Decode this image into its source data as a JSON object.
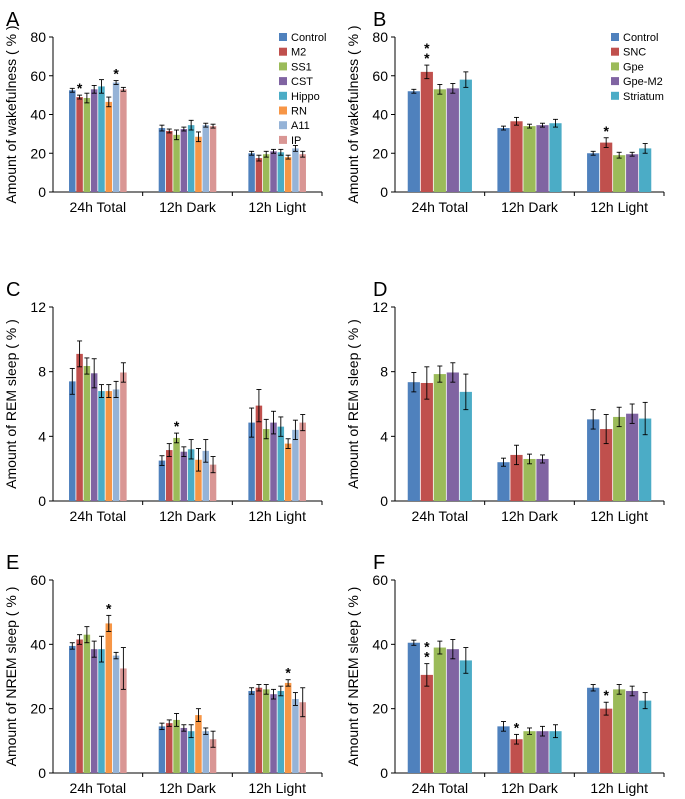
{
  "colors": {
    "Control": "#4f81bd",
    "M2": "#c0504d",
    "SS1": "#9bbb59",
    "CST": "#8064a2",
    "Hippo": "#4bacc6",
    "RN": "#f79646",
    "A11": "#95b3d7",
    "IP": "#d99694",
    "SNC": "#c0504d",
    "Gpe": "#9bbb59",
    "Gpe-M2": "#8064a2",
    "Striatum": "#4bacc6"
  },
  "chart_data": [
    {
      "panel": "A",
      "type": "bar",
      "ylabel": "Amount of wakefulness ( % )",
      "ylim": [
        0,
        80
      ],
      "yticks": [
        0,
        20,
        40,
        60,
        80
      ],
      "categories": [
        "24h Total",
        "12h Dark",
        "12h Light"
      ],
      "legend_position": "top-right",
      "series": [
        {
          "name": "Control",
          "values": [
            52.5,
            33,
            20
          ],
          "errors": [
            1.0,
            1.5,
            1.0
          ],
          "stars": [
            "",
            "",
            ""
          ]
        },
        {
          "name": "M2",
          "values": [
            49,
            31.5,
            17.5
          ],
          "errors": [
            1.0,
            1.0,
            1.5
          ],
          "stars": [
            "*",
            "",
            ""
          ]
        },
        {
          "name": "SS1",
          "values": [
            48.5,
            29.5,
            19.5
          ],
          "errors": [
            2.5,
            2.5,
            1.5
          ],
          "stars": [
            "",
            "",
            ""
          ]
        },
        {
          "name": "CST",
          "values": [
            53,
            32.5,
            21
          ],
          "errors": [
            2.0,
            1.0,
            1.0
          ],
          "stars": [
            "",
            "",
            ""
          ]
        },
        {
          "name": "Hippo",
          "values": [
            54.5,
            34.5,
            20.5
          ],
          "errors": [
            3.5,
            2.5,
            1.5
          ],
          "stars": [
            "",
            "",
            ""
          ]
        },
        {
          "name": "RN",
          "values": [
            46.5,
            28.5,
            18
          ],
          "errors": [
            2.5,
            2.5,
            1.0
          ],
          "stars": [
            "",
            "",
            ""
          ]
        },
        {
          "name": "A11",
          "values": [
            56.5,
            34.5,
            22.5
          ],
          "errors": [
            1.0,
            1.0,
            1.5
          ],
          "stars": [
            "*",
            "",
            ""
          ]
        },
        {
          "name": "IP",
          "values": [
            53,
            34,
            19.5
          ],
          "errors": [
            1.0,
            1.0,
            1.5
          ],
          "stars": [
            "",
            "",
            ""
          ]
        }
      ]
    },
    {
      "panel": "B",
      "type": "bar",
      "ylabel": "Amount of wakefulness ( % )",
      "ylim": [
        0,
        80
      ],
      "yticks": [
        0,
        20,
        40,
        60,
        80
      ],
      "categories": [
        "24h Total",
        "12h Dark",
        "12h Light"
      ],
      "legend_position": "top-right",
      "series": [
        {
          "name": "Control",
          "values": [
            52,
            33,
            20
          ],
          "errors": [
            1.0,
            1.0,
            1.0
          ],
          "stars": [
            "",
            "",
            ""
          ]
        },
        {
          "name": "SNC",
          "values": [
            62,
            36.5,
            25.5
          ],
          "errors": [
            3.5,
            2.0,
            2.5
          ],
          "stars": [
            "**",
            "",
            "*"
          ]
        },
        {
          "name": "Gpe",
          "values": [
            53,
            34,
            19
          ],
          "errors": [
            2.5,
            1.0,
            1.5
          ],
          "stars": [
            "",
            "",
            ""
          ]
        },
        {
          "name": "Gpe-M2",
          "values": [
            53.5,
            34.5,
            19.5
          ],
          "errors": [
            2.5,
            1.0,
            1.0
          ],
          "stars": [
            "",
            "",
            ""
          ]
        },
        {
          "name": "Striatum",
          "values": [
            58,
            35.5,
            22.5
          ],
          "errors": [
            4.0,
            2.0,
            2.5
          ],
          "stars": [
            "",
            "",
            ""
          ]
        }
      ]
    },
    {
      "panel": "C",
      "type": "bar",
      "ylabel": "Amount of REM sleep ( % )",
      "ylim": [
        0,
        12
      ],
      "yticks": [
        0,
        4,
        8,
        12
      ],
      "categories": [
        "24h Total",
        "12h Dark",
        "12h Light"
      ],
      "series": [
        {
          "name": "Control",
          "values": [
            7.4,
            2.5,
            4.85
          ],
          "errors": [
            0.8,
            0.3,
            0.9
          ],
          "stars": [
            "",
            "",
            ""
          ]
        },
        {
          "name": "M2",
          "values": [
            9.1,
            3.15,
            5.9
          ],
          "errors": [
            0.8,
            0.4,
            1.0
          ],
          "stars": [
            "",
            "",
            ""
          ]
        },
        {
          "name": "SS1",
          "values": [
            8.35,
            3.9,
            4.45
          ],
          "errors": [
            0.5,
            0.3,
            0.6
          ],
          "stars": [
            "",
            "*",
            ""
          ]
        },
        {
          "name": "CST",
          "values": [
            7.9,
            3.05,
            4.85
          ],
          "errors": [
            0.9,
            0.3,
            0.7
          ],
          "stars": [
            "",
            "",
            ""
          ]
        },
        {
          "name": "Hippo",
          "values": [
            6.8,
            3.2,
            4.6
          ],
          "errors": [
            0.4,
            0.6,
            0.6
          ],
          "stars": [
            "",
            "",
            ""
          ]
        },
        {
          "name": "RN",
          "values": [
            6.8,
            2.55,
            3.55
          ],
          "errors": [
            0.4,
            0.7,
            0.3
          ],
          "stars": [
            "",
            "",
            ""
          ]
        },
        {
          "name": "A11",
          "values": [
            6.9,
            3.1,
            4.4
          ],
          "errors": [
            0.5,
            0.7,
            0.6
          ],
          "stars": [
            "",
            "",
            ""
          ]
        },
        {
          "name": "IP",
          "values": [
            7.95,
            2.25,
            4.85
          ],
          "errors": [
            0.6,
            0.5,
            0.5
          ],
          "stars": [
            "",
            "",
            ""
          ]
        }
      ]
    },
    {
      "panel": "D",
      "type": "bar",
      "ylabel": "Amount of REM sleep ( % )",
      "ylim": [
        0,
        12
      ],
      "yticks": [
        0,
        4,
        8,
        12
      ],
      "categories": [
        "24h Total",
        "12h Dark",
        "12h Light"
      ],
      "series": [
        {
          "name": "Control",
          "values": [
            7.35,
            2.4,
            5.05
          ],
          "errors": [
            0.6,
            0.25,
            0.6
          ],
          "stars": [
            "",
            "",
            ""
          ]
        },
        {
          "name": "SNC",
          "values": [
            7.3,
            2.85,
            4.45
          ],
          "errors": [
            1.0,
            0.6,
            0.9
          ],
          "stars": [
            "",
            "",
            ""
          ]
        },
        {
          "name": "Gpe",
          "values": [
            7.85,
            2.6,
            5.2
          ],
          "errors": [
            0.5,
            0.3,
            0.6
          ],
          "stars": [
            "",
            "",
            ""
          ]
        },
        {
          "name": "Gpe-M2",
          "values": [
            7.95,
            2.6,
            5.4
          ],
          "errors": [
            0.6,
            0.25,
            0.6
          ],
          "stars": [
            "",
            "",
            ""
          ]
        },
        {
          "name": "Striatum",
          "values": [
            6.75,
            0,
            5.1
          ],
          "errors": [
            1.1,
            0,
            1.0
          ],
          "stars": [
            "",
            "",
            ""
          ]
        }
      ]
    },
    {
      "panel": "E",
      "type": "bar",
      "ylabel": "Amount of NREM sleep ( % )",
      "ylim": [
        0,
        60
      ],
      "yticks": [
        0,
        20,
        40,
        60
      ],
      "categories": [
        "24h Total",
        "12h Dark",
        "12h Light"
      ],
      "series": [
        {
          "name": "Control",
          "values": [
            39.5,
            14.5,
            25.5
          ],
          "errors": [
            1.0,
            1.0,
            1.0
          ],
          "stars": [
            "",
            "",
            ""
          ]
        },
        {
          "name": "M2",
          "values": [
            41.5,
            15.5,
            26.5
          ],
          "errors": [
            1.5,
            1.0,
            1.0
          ],
          "stars": [
            "",
            "",
            ""
          ]
        },
        {
          "name": "SS1",
          "values": [
            43,
            16.5,
            26
          ],
          "errors": [
            2.5,
            2.0,
            1.5
          ],
          "stars": [
            "",
            "",
            ""
          ]
        },
        {
          "name": "CST",
          "values": [
            38.5,
            14,
            24.5
          ],
          "errors": [
            2.5,
            1.0,
            1.5
          ],
          "stars": [
            "",
            "",
            ""
          ]
        },
        {
          "name": "Hippo",
          "values": [
            38.5,
            13,
            25.5
          ],
          "errors": [
            4.0,
            2.0,
            1.5
          ],
          "stars": [
            "",
            "",
            ""
          ]
        },
        {
          "name": "RN",
          "values": [
            46.5,
            18,
            28
          ],
          "errors": [
            2.5,
            2.0,
            1.0
          ],
          "stars": [
            "*",
            "",
            "*"
          ]
        },
        {
          "name": "A11",
          "values": [
            36.5,
            13,
            23
          ],
          "errors": [
            1.0,
            1.0,
            2.0
          ],
          "stars": [
            "",
            "",
            ""
          ]
        },
        {
          "name": "IP",
          "values": [
            32.5,
            10.5,
            22
          ],
          "errors": [
            6.5,
            2.5,
            4.5
          ],
          "stars": [
            "",
            "",
            ""
          ]
        }
      ]
    },
    {
      "panel": "F",
      "type": "bar",
      "ylabel": "Amount of NREM sleep ( % )",
      "ylim": [
        0,
        60
      ],
      "yticks": [
        0,
        20,
        40,
        60
      ],
      "categories": [
        "24h Total",
        "12h Dark",
        "12h Light"
      ],
      "series": [
        {
          "name": "Control",
          "values": [
            40.5,
            14.5,
            26.5
          ],
          "errors": [
            0.8,
            1.5,
            1.0
          ],
          "stars": [
            "",
            "",
            ""
          ]
        },
        {
          "name": "SNC",
          "values": [
            30.5,
            10.5,
            20
          ],
          "errors": [
            3.5,
            1.5,
            2.0
          ],
          "stars": [
            "**",
            "*",
            "*"
          ]
        },
        {
          "name": "Gpe",
          "values": [
            39,
            13,
            26
          ],
          "errors": [
            2.0,
            1.0,
            1.5
          ],
          "stars": [
            "",
            "",
            ""
          ]
        },
        {
          "name": "Gpe-M2",
          "values": [
            38.5,
            13,
            25.5
          ],
          "errors": [
            3.0,
            1.5,
            1.5
          ],
          "stars": [
            "",
            "",
            ""
          ]
        },
        {
          "name": "Striatum",
          "values": [
            35,
            13,
            22.5
          ],
          "errors": [
            4.0,
            2.0,
            2.5
          ],
          "stars": [
            "",
            "",
            ""
          ]
        }
      ]
    }
  ]
}
